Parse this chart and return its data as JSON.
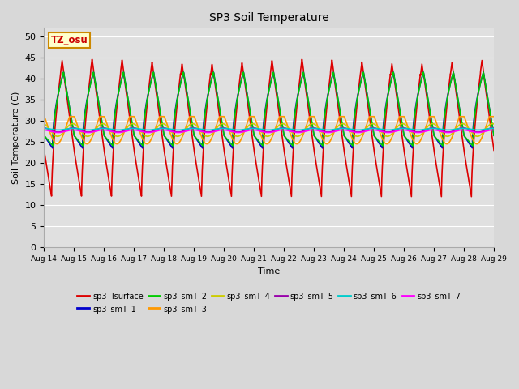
{
  "title": "SP3 Soil Temperature",
  "xlabel": "Time",
  "ylabel": "Soil Temperature (C)",
  "ylim": [
    0,
    52
  ],
  "yticks": [
    0,
    5,
    10,
    15,
    20,
    25,
    30,
    35,
    40,
    45,
    50
  ],
  "xtick_labels": [
    "Aug 14",
    "Aug 15",
    "Aug 16",
    "Aug 17",
    "Aug 18",
    "Aug 19",
    "Aug 20",
    "Aug 21",
    "Aug 22",
    "Aug 23",
    "Aug 24",
    "Aug 25",
    "Aug 26",
    "Aug 27",
    "Aug 28",
    "Aug 29"
  ],
  "tz_label": "TZ_osu",
  "tz_bg": "#ffffcc",
  "tz_border": "#cc8800",
  "tz_text": "#cc0000",
  "fig_bg": "#d8d8d8",
  "plot_bg": "#e0e0e0",
  "grid_color": "#ffffff",
  "series": [
    {
      "name": "sp3_Tsurface",
      "color": "#dd0000"
    },
    {
      "name": "sp3_smT_1",
      "color": "#0000cc"
    },
    {
      "name": "sp3_smT_2",
      "color": "#00cc00"
    },
    {
      "name": "sp3_smT_3",
      "color": "#ff9900"
    },
    {
      "name": "sp3_smT_4",
      "color": "#cccc00"
    },
    {
      "name": "sp3_smT_5",
      "color": "#9900aa"
    },
    {
      "name": "sp3_smT_6",
      "color": "#00cccc"
    },
    {
      "name": "sp3_smT_7",
      "color": "#ff00ff"
    }
  ],
  "num_days": 15,
  "pts_per_day": 288
}
